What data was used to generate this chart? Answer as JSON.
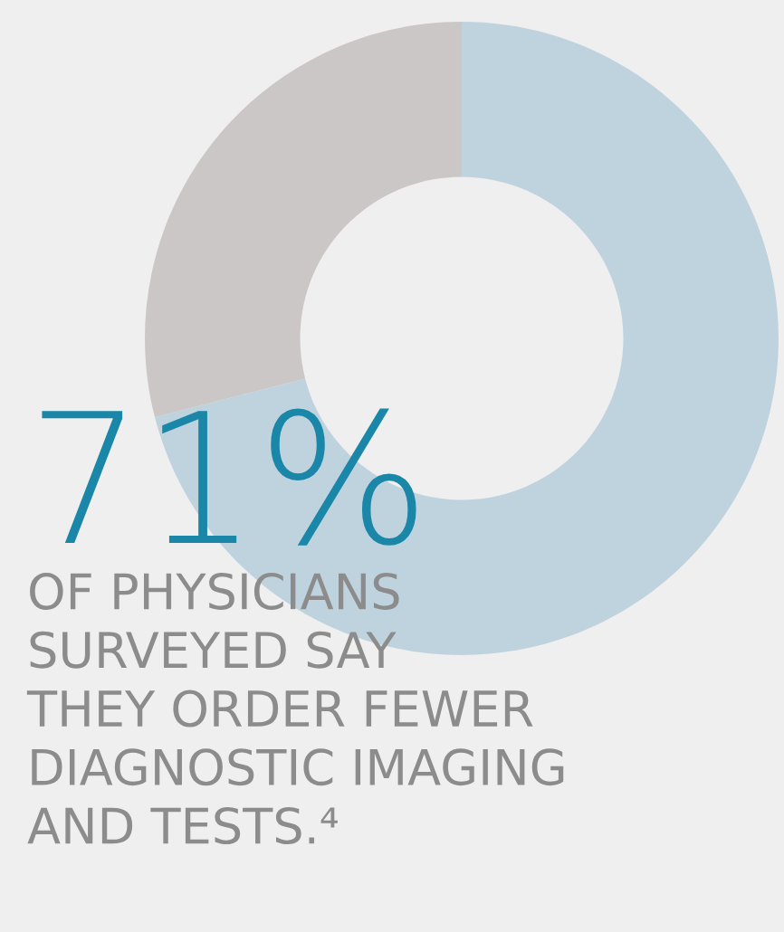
{
  "chart_data": {
    "type": "donut",
    "categories": [
      null,
      null
    ],
    "values": [
      71,
      29
    ],
    "colors": [
      "#bfd3df",
      "#cbc7c6"
    ],
    "value_labels": [
      "71%",
      null
    ],
    "annotations": [
      "OF PHYSICIANS\nSURVEYED SAY\nTHEY ORDER FEWER\nDIAGNOSTIC IMAGING\nAND TESTS.⁴"
    ]
  }
}
